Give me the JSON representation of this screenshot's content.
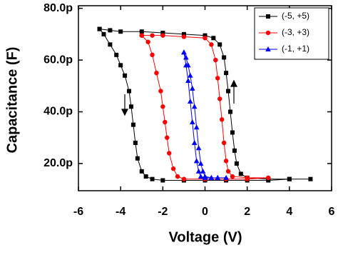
{
  "chart_data": {
    "type": "line",
    "xlabel": "Voltage (V)",
    "ylabel": "Capacitance (F)",
    "xlim": [
      -6,
      6
    ],
    "xticks": [
      -6,
      -4,
      -2,
      0,
      2,
      4,
      6
    ],
    "ylim": [
      9.5e-12,
      8.1e-11
    ],
    "yticks": [
      {
        "value": 2e-11,
        "label": "20.0p"
      },
      {
        "value": 4e-11,
        "label": "40.0p"
      },
      {
        "value": 6e-11,
        "label": "60.0p"
      },
      {
        "value": 8e-11,
        "label": "80.0p"
      }
    ],
    "legend": "upper right",
    "series": [
      {
        "name": "(-5, +5)",
        "color": "#000000",
        "marker": "square",
        "x": [
          -5.0,
          -4.5,
          -4.0,
          -3.0,
          -2.0,
          -1.0,
          0.0,
          0.4,
          0.7,
          0.9,
          1.0,
          1.1,
          1.2,
          1.3,
          1.4,
          1.5,
          1.7,
          2.0,
          3.0,
          4.0,
          5.0,
          4.0,
          3.0,
          2.0,
          1.0,
          0.0,
          -1.0,
          -2.0,
          -2.5,
          -2.8,
          -3.0,
          -3.2,
          -3.3,
          -3.4,
          -3.5,
          -3.6,
          -3.8,
          -4.0,
          -4.2,
          -4.5,
          -4.8,
          -5.0
        ],
        "values": [
          7.2e-11,
          7.15e-11,
          7.1e-11,
          7.1e-11,
          7.05e-11,
          7e-11,
          6.95e-11,
          6.85e-11,
          6.6e-11,
          6.1e-11,
          5.5e-11,
          4.8e-11,
          4e-11,
          3.2e-11,
          2.5e-11,
          2e-11,
          1.6e-11,
          1.45e-11,
          1.4e-11,
          1.4e-11,
          1.4e-11,
          1.4e-11,
          1.35e-11,
          1.35e-11,
          1.35e-11,
          1.35e-11,
          1.35e-11,
          1.35e-11,
          1.4e-11,
          1.5e-11,
          1.7e-11,
          2.2e-11,
          2.8e-11,
          3.5e-11,
          4.2e-11,
          4.8e-11,
          5.4e-11,
          5.8e-11,
          6.2e-11,
          6.6e-11,
          7e-11,
          7.2e-11
        ]
      },
      {
        "name": "(-3, +3)",
        "color": "#ff0000",
        "marker": "circle",
        "x": [
          -3.0,
          -2.5,
          -2.0,
          -1.0,
          0.0,
          0.3,
          0.5,
          0.6,
          0.7,
          0.8,
          0.9,
          1.0,
          1.1,
          1.3,
          2.0,
          3.0,
          2.0,
          1.0,
          0.0,
          -1.0,
          -1.3,
          -1.5,
          -1.7,
          -1.8,
          -1.9,
          -2.0,
          -2.1,
          -2.3,
          -2.5,
          -2.7,
          -3.0
        ],
        "values": [
          6.95e-11,
          6.95e-11,
          6.95e-11,
          6.9e-11,
          6.85e-11,
          6.6e-11,
          6e-11,
          5.3e-11,
          4.5e-11,
          3.7e-11,
          2.8e-11,
          2.1e-11,
          1.7e-11,
          1.5e-11,
          1.45e-11,
          1.45e-11,
          1.4e-11,
          1.4e-11,
          1.4e-11,
          1.4e-11,
          1.5e-11,
          1.8e-11,
          2.4e-11,
          3e-11,
          3.6e-11,
          4.2e-11,
          4.8e-11,
          5.5e-11,
          6.2e-11,
          6.7e-11,
          6.95e-11
        ]
      },
      {
        "name": "(-1, +1)",
        "color": "#0000ff",
        "marker": "triangle",
        "x": [
          -1.0,
          -0.9,
          -0.8,
          -0.7,
          -0.6,
          -0.5,
          -0.4,
          -0.3,
          -0.2,
          -0.1,
          0.0,
          0.3,
          0.6,
          1.0,
          0.6,
          0.3,
          0.0,
          -0.2,
          -0.3,
          -0.4,
          -0.5,
          -0.6,
          -0.7,
          -0.8,
          -0.9,
          -1.0
        ],
        "values": [
          6.3e-11,
          6.1e-11,
          5.8e-11,
          5.4e-11,
          4.9e-11,
          4.2e-11,
          3.4e-11,
          2.6e-11,
          2e-11,
          1.7e-11,
          1.5e-11,
          1.45e-11,
          1.45e-11,
          1.45e-11,
          1.45e-11,
          1.45e-11,
          1.45e-11,
          1.5e-11,
          1.7e-11,
          2.1e-11,
          2.8e-11,
          3.6e-11,
          4.4e-11,
          5.2e-11,
          5.8e-11,
          6.3e-11
        ]
      }
    ]
  }
}
